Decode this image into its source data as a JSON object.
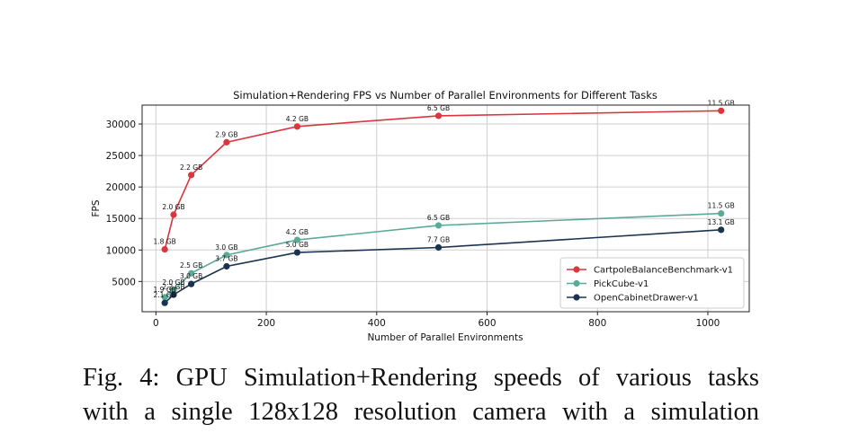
{
  "chart_data": {
    "type": "line",
    "title": "Simulation+Rendering FPS vs Number of Parallel Environments for Different Tasks",
    "xlabel": "Number of Parallel Environments",
    "ylabel": "FPS",
    "xlim": [
      -25,
      1075
    ],
    "ylim": [
      200,
      33000
    ],
    "xticks": [
      0,
      200,
      400,
      600,
      800,
      1000
    ],
    "yticks": [
      5000,
      10000,
      15000,
      20000,
      25000,
      30000
    ],
    "grid": true,
    "legend_position": "lower right",
    "series": [
      {
        "name": "CartpoleBalanceBenchmark-v1",
        "color": "#d9363e",
        "x": [
          16,
          32,
          64,
          128,
          256,
          512,
          1024
        ],
        "y": [
          10100,
          15600,
          21900,
          27100,
          29600,
          31300,
          32100
        ],
        "labels": [
          "1.8 GB",
          "2.0 GB",
          "2.2 GB",
          "2.9 GB",
          "4.2 GB",
          "6.5 GB",
          "11.5 GB"
        ]
      },
      {
        "name": "PickCube-v1",
        "color": "#5aaa98",
        "x": [
          16,
          32,
          64,
          128,
          256,
          512,
          1024
        ],
        "y": [
          2500,
          3600,
          6300,
          9200,
          11600,
          13900,
          15800
        ],
        "labels": [
          "1.9 GB",
          "2.0 GB",
          "2.5 GB",
          "3.0 GB",
          "4.2 GB",
          "6.5 GB",
          "11.5 GB"
        ]
      },
      {
        "name": "OpenCabinetDrawer-v1",
        "color": "#1a3350",
        "x": [
          16,
          32,
          64,
          128,
          256,
          512,
          1024
        ],
        "y": [
          1600,
          2900,
          4600,
          7400,
          9600,
          10400,
          13200
        ],
        "labels": [
          "2.1 GB",
          "2.2 GB",
          "3.0 GB",
          "3.7 GB",
          "5.0 GB",
          "7.7 GB",
          "13.1 GB"
        ]
      }
    ]
  },
  "caption": {
    "line1": "Fig. 4: GPU Simulation+Rendering speeds of various tasks",
    "line2": "with a single 128x128 resolution camera with a simulation"
  }
}
